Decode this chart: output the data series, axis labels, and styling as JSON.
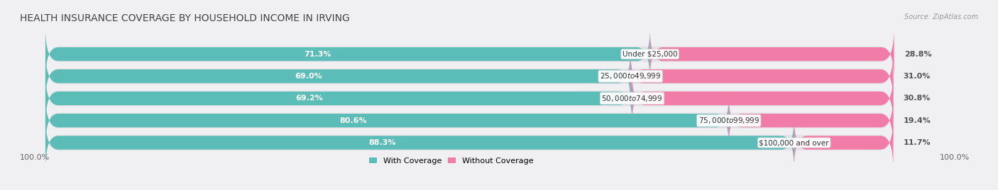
{
  "title": "HEALTH INSURANCE COVERAGE BY HOUSEHOLD INCOME IN IRVING",
  "source": "Source: ZipAtlas.com",
  "categories": [
    "Under $25,000",
    "$25,000 to $49,999",
    "$50,000 to $74,999",
    "$75,000 to $99,999",
    "$100,000 and over"
  ],
  "with_coverage": [
    71.3,
    69.0,
    69.2,
    80.6,
    88.3
  ],
  "without_coverage": [
    28.8,
    31.0,
    30.8,
    19.4,
    11.7
  ],
  "color_with": "#5bbcb8",
  "color_without": "#f27ca8",
  "bg_color": "#f0f0f2",
  "bar_bg_color": "#e2e2e6",
  "legend_with": "With Coverage",
  "legend_without": "Without Coverage",
  "axis_label_left": "100.0%",
  "axis_label_right": "100.0%",
  "title_fontsize": 10,
  "label_fontsize": 8,
  "cat_fontsize": 7.5,
  "bar_height": 0.62,
  "total_width": 100.0
}
